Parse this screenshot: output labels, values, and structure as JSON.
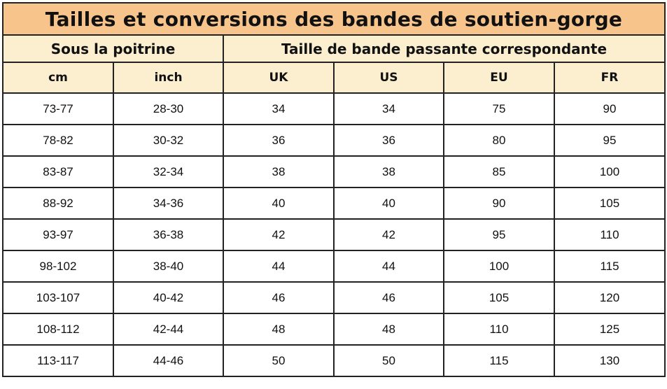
{
  "title": "Tailles et conversions des bandes de soutien-gorge",
  "groups": {
    "underbust": "Sous la poitrine",
    "band": "Taille de bande passante correspondante"
  },
  "columns": {
    "cm": "cm",
    "inch": "inch",
    "uk": "UK",
    "us": "US",
    "eu": "EU",
    "fr": "FR"
  },
  "rows": [
    {
      "cm": "73-77",
      "inch": "28-30",
      "uk": "34",
      "us": "34",
      "eu": "75",
      "fr": "90"
    },
    {
      "cm": "78-82",
      "inch": "30-32",
      "uk": "36",
      "us": "36",
      "eu": "80",
      "fr": "95"
    },
    {
      "cm": "83-87",
      "inch": "32-34",
      "uk": "38",
      "us": "38",
      "eu": "85",
      "fr": "100"
    },
    {
      "cm": "88-92",
      "inch": "34-36",
      "uk": "40",
      "us": "40",
      "eu": "90",
      "fr": "105"
    },
    {
      "cm": "93-97",
      "inch": "36-38",
      "uk": "42",
      "us": "42",
      "eu": "95",
      "fr": "110"
    },
    {
      "cm": "98-102",
      "inch": "38-40",
      "uk": "44",
      "us": "44",
      "eu": "100",
      "fr": "115"
    },
    {
      "cm": "103-107",
      "inch": "40-42",
      "uk": "46",
      "us": "46",
      "eu": "105",
      "fr": "120"
    },
    {
      "cm": "108-112",
      "inch": "42-44",
      "uk": "48",
      "us": "48",
      "eu": "110",
      "fr": "125"
    },
    {
      "cm": "113-117",
      "inch": "44-46",
      "uk": "50",
      "us": "50",
      "eu": "115",
      "fr": "130"
    }
  ],
  "colors": {
    "title_background": "#f7c58c",
    "header_background": "#fbefd0",
    "border": "#222222"
  }
}
